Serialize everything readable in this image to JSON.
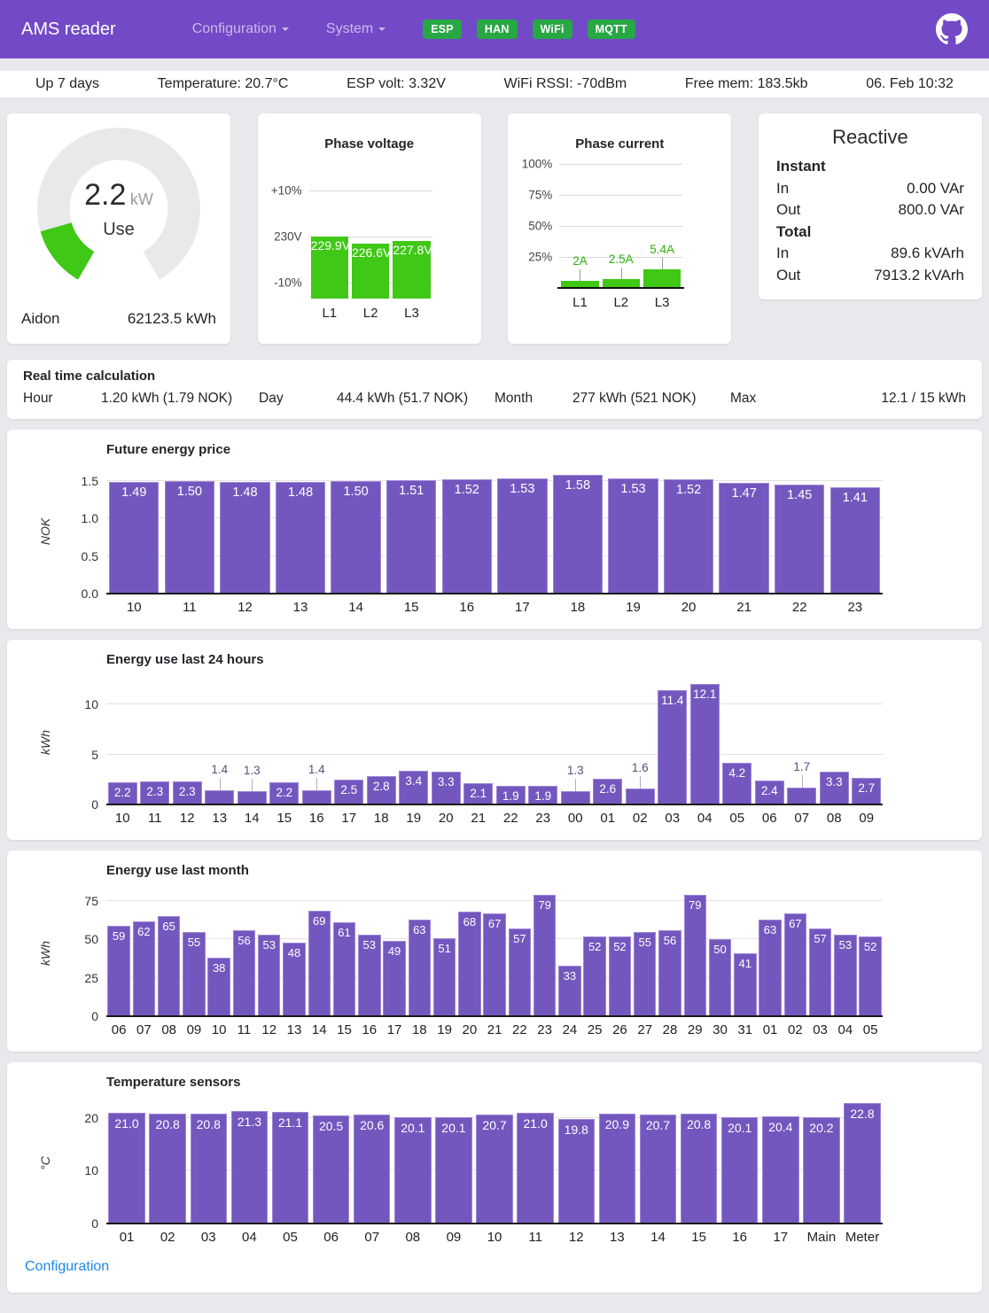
{
  "app": {
    "title": "AMS reader",
    "menu": [
      {
        "label": "Configuration"
      },
      {
        "label": "System"
      }
    ],
    "badges": [
      "ESP",
      "HAN",
      "WiFi",
      "MQTT"
    ]
  },
  "statusbar": {
    "items": [
      "Up 7 days",
      "Temperature: 20.7°C",
      "ESP volt: 3.32V",
      "WiFi RSSI: -70dBm",
      "Free mem: 183.5kb",
      "06. Feb 10:32"
    ]
  },
  "gauge": {
    "value": "2.2",
    "unit": "kW",
    "mode": "Use",
    "numeric_value": 2.2,
    "max": 15,
    "meter": "Aidon",
    "total": "62123.5 kWh"
  },
  "reactive": {
    "title": "Reactive",
    "sections": [
      {
        "header": "Instant",
        "rows": [
          {
            "label": "In",
            "value": "0.00 VAr"
          },
          {
            "label": "Out",
            "value": "800.0 VAr"
          }
        ]
      },
      {
        "header": "Total",
        "rows": [
          {
            "label": "In",
            "value": "89.6 kVArh"
          },
          {
            "label": "Out",
            "value": "7913.2 kVArh"
          }
        ]
      }
    ]
  },
  "realtime": {
    "title": "Real time calculation",
    "items": [
      {
        "label": "Hour",
        "value": "1.20 kWh (1.79 NOK)"
      },
      {
        "label": "Day",
        "value": "44.4 kWh (51.7 NOK)"
      },
      {
        "label": "Month",
        "value": "277 kWh (521 NOK)"
      },
      {
        "label": "Max",
        "value": "12.1 / 15 kWh"
      }
    ]
  },
  "footer": {
    "link": "Configuration"
  },
  "colors": {
    "header_bg": "#7249c6",
    "badge_green": "#28a745",
    "green": "#3fc815",
    "bar_purple": "#7457be",
    "bar_border": "#9d87d6",
    "link_blue": "#1e88e5",
    "gauge_track": "#e9e9ea"
  },
  "chart_data": [
    {
      "id": "phase_voltage",
      "type": "bar",
      "title": "Phase voltage",
      "categories": [
        "L1",
        "L2",
        "L3"
      ],
      "values": [
        229.9,
        226.6,
        227.8
      ],
      "labels": [
        "229.9V",
        "226.6V",
        "227.8V"
      ],
      "ylabel": "",
      "nominal": 230,
      "range_pct": 10,
      "yticks_text": [
        "+10%",
        "230V",
        "-10%"
      ],
      "grid": true,
      "legend": "none"
    },
    {
      "id": "phase_current",
      "type": "bar",
      "title": "Phase current",
      "categories": [
        "L1",
        "L2",
        "L3"
      ],
      "values": [
        2,
        2.5,
        5.4
      ],
      "labels": [
        "2A",
        "2.5A",
        "5.4A"
      ],
      "ylabel": "",
      "max": 36,
      "yticks_text": [
        "100%",
        "75%",
        "50%",
        "25%"
      ],
      "grid": true,
      "legend": "none"
    },
    {
      "id": "future_price",
      "type": "bar",
      "title": "Future energy price",
      "ylabel": "NOK",
      "categories": [
        "10",
        "11",
        "12",
        "13",
        "14",
        "15",
        "16",
        "17",
        "18",
        "19",
        "20",
        "21",
        "22",
        "23"
      ],
      "values": [
        1.49,
        1.5,
        1.48,
        1.48,
        1.5,
        1.51,
        1.52,
        1.53,
        1.58,
        1.53,
        1.52,
        1.47,
        1.45,
        1.41
      ],
      "labels": [
        "1.49",
        "1.50",
        "1.48",
        "1.48",
        "1.50",
        "1.51",
        "1.52",
        "1.53",
        "1.58",
        "1.53",
        "1.52",
        "1.47",
        "1.45",
        "1.41"
      ],
      "yticks": [
        {
          "v": 0,
          "label": "0.0"
        },
        {
          "v": 0.5,
          "label": "0.5"
        },
        {
          "v": 1.0,
          "label": "1.0"
        },
        {
          "v": 1.5,
          "label": "1.5"
        }
      ],
      "ylim": [
        0,
        1.65
      ],
      "grid": true,
      "legend": "none"
    },
    {
      "id": "last24",
      "type": "bar",
      "title": "Energy use last 24 hours",
      "ylabel": "kWh",
      "categories": [
        "10",
        "11",
        "12",
        "13",
        "14",
        "15",
        "16",
        "17",
        "18",
        "19",
        "20",
        "21",
        "22",
        "23",
        "00",
        "01",
        "02",
        "03",
        "04",
        "05",
        "06",
        "07",
        "08",
        "09"
      ],
      "values": [
        2.2,
        2.3,
        2.3,
        1.4,
        1.3,
        2.2,
        1.4,
        2.5,
        2.8,
        3.4,
        3.3,
        2.1,
        1.9,
        1.9,
        1.3,
        2.6,
        1.6,
        11.4,
        12.1,
        4.2,
        2.4,
        1.7,
        3.3,
        2.7
      ],
      "labels": [
        "2.2",
        "2.3",
        "2.3",
        "1.4",
        "1.3",
        "2.2",
        "1.4",
        "2.5",
        "2.8",
        "3.4",
        "3.3",
        "2.1",
        "1.9",
        "1.9",
        "1.3",
        "2.6",
        "1.6",
        "11.4",
        "12.1",
        "4.2",
        "2.4",
        "1.7",
        "3.3",
        "2.7"
      ],
      "yticks": [
        {
          "v": 0,
          "label": "0"
        },
        {
          "v": 5,
          "label": "5"
        },
        {
          "v": 10,
          "label": "10"
        }
      ],
      "ylim": [
        0,
        12.5
      ],
      "grid": true,
      "legend": "none"
    },
    {
      "id": "last_month",
      "type": "bar",
      "title": "Energy use last month",
      "ylabel": "kWh",
      "categories": [
        "06",
        "07",
        "08",
        "09",
        "10",
        "11",
        "12",
        "13",
        "14",
        "15",
        "16",
        "17",
        "18",
        "19",
        "20",
        "21",
        "22",
        "23",
        "24",
        "25",
        "26",
        "27",
        "28",
        "29",
        "30",
        "31",
        "01",
        "02",
        "03",
        "04",
        "05"
      ],
      "values": [
        59,
        62,
        65,
        55,
        38,
        56,
        53,
        48,
        69,
        61,
        53,
        49,
        63,
        51,
        68,
        67,
        57,
        79,
        33,
        52,
        52,
        55,
        56,
        79,
        50,
        41,
        63,
        67,
        57,
        53,
        52
      ],
      "labels": [
        "59",
        "62",
        "65",
        "55",
        "38",
        "56",
        "53",
        "48",
        "69",
        "61",
        "53",
        "49",
        "63",
        "51",
        "68",
        "67",
        "57",
        "79",
        "33",
        "52",
        "52",
        "55",
        "56",
        "79",
        "50",
        "41",
        "63",
        "67",
        "57",
        "53",
        "52"
      ],
      "yticks": [
        {
          "v": 0,
          "label": "0"
        },
        {
          "v": 25,
          "label": "25"
        },
        {
          "v": 50,
          "label": "50"
        },
        {
          "v": 75,
          "label": "75"
        }
      ],
      "ylim": [
        0,
        82
      ],
      "grid": true,
      "legend": "none"
    },
    {
      "id": "temperature",
      "type": "bar",
      "title": "Temperature sensors",
      "ylabel": "°C",
      "categories": [
        "01",
        "02",
        "03",
        "04",
        "05",
        "06",
        "07",
        "08",
        "09",
        "10",
        "11",
        "12",
        "13",
        "14",
        "15",
        "16",
        "17",
        "Main",
        "Meter"
      ],
      "values": [
        21.0,
        20.8,
        20.8,
        21.3,
        21.1,
        20.5,
        20.6,
        20.1,
        20.1,
        20.7,
        21.0,
        19.8,
        20.9,
        20.7,
        20.8,
        20.1,
        20.4,
        20.2,
        22.8
      ],
      "labels": [
        "21.0",
        "20.8",
        "20.8",
        "21.3",
        "21.1",
        "20.5",
        "20.6",
        "20.1",
        "20.1",
        "20.7",
        "21.0",
        "19.8",
        "20.9",
        "20.7",
        "20.8",
        "20.1",
        "20.4",
        "20.2",
        "22.8"
      ],
      "yticks": [
        {
          "v": 0,
          "label": "0"
        },
        {
          "v": 10,
          "label": "10"
        },
        {
          "v": 20,
          "label": "20"
        }
      ],
      "ylim": [
        0,
        23
      ],
      "grid": true,
      "legend": "none"
    }
  ]
}
